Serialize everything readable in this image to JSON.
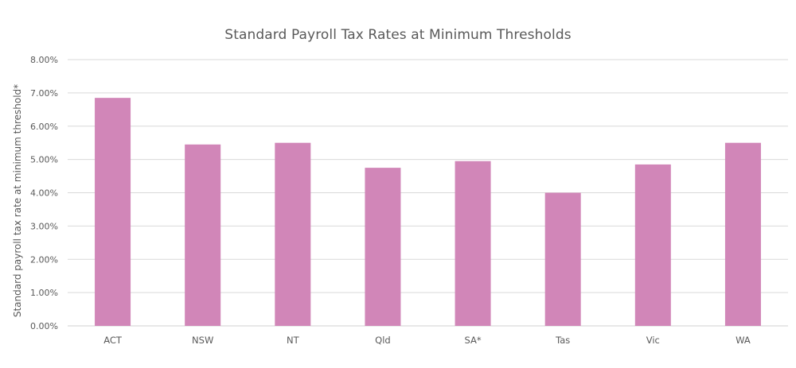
{
  "chart_data": {
    "type": "bar",
    "title": "Standard Payroll Tax Rates at Minimum Thresholds",
    "xlabel": "",
    "ylabel": "Standard payroll tax rate at minimum threshold*",
    "categories": [
      "ACT",
      "NSW",
      "NT",
      "Qld",
      "SA*",
      "Tas",
      "Vic",
      "WA"
    ],
    "values": [
      6.85,
      5.45,
      5.5,
      4.75,
      4.95,
      4.0,
      4.85,
      5.5
    ],
    "value_unit": "%",
    "ylim": [
      0,
      8
    ],
    "ytick_labels": [
      "0.00%",
      "1.00%",
      "2.00%",
      "3.00%",
      "4.00%",
      "5.00%",
      "6.00%",
      "7.00%",
      "8.00%"
    ],
    "grid": true,
    "legend": "none",
    "bar_color": "#d186b8",
    "grid_color": "#d9d9d9"
  }
}
